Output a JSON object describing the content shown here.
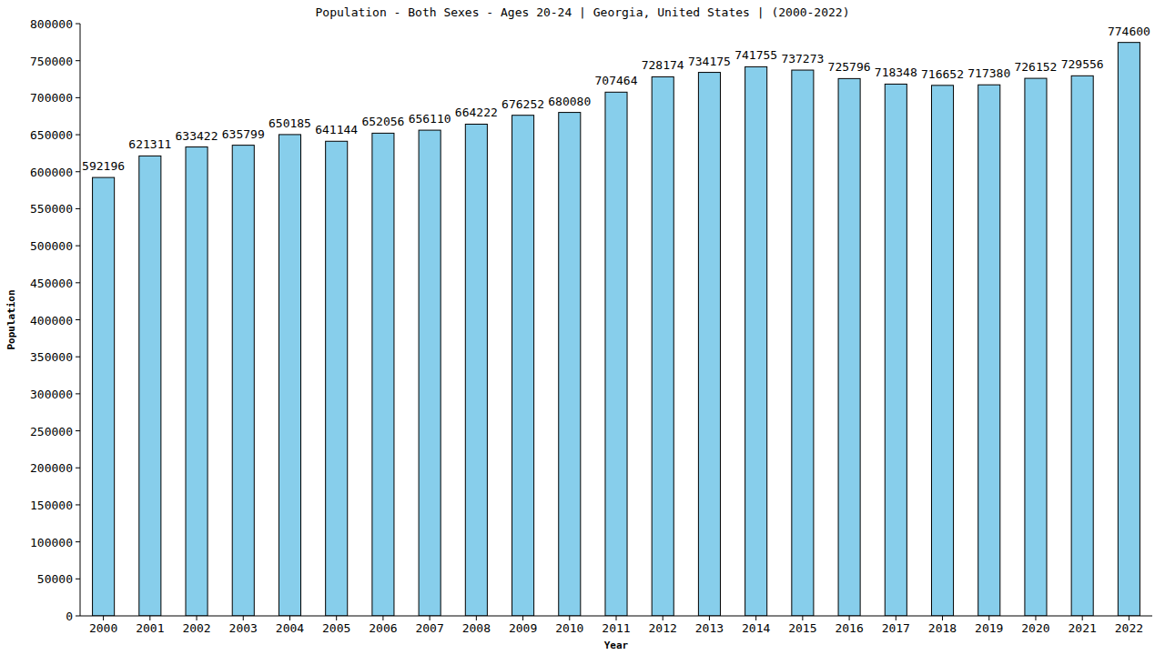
{
  "chart_data": {
    "type": "bar",
    "title": "Population - Both Sexes - Ages 20-24 | Georgia, United States |  (2000-2022)",
    "x_label": "Year",
    "y_label": "Population",
    "categories": [
      "2000",
      "2001",
      "2002",
      "2003",
      "2004",
      "2005",
      "2006",
      "2007",
      "2008",
      "2009",
      "2010",
      "2011",
      "2012",
      "2013",
      "2014",
      "2015",
      "2016",
      "2017",
      "2018",
      "2019",
      "2020",
      "2021",
      "2022"
    ],
    "values": [
      592196,
      621311,
      633422,
      635799,
      650185,
      641144,
      652056,
      656110,
      664222,
      676252,
      680080,
      707464,
      728174,
      734175,
      741755,
      737273,
      725796,
      718348,
      716652,
      717380,
      726152,
      729556,
      774600
    ],
    "color": "#87ceeb",
    "ylim": [
      0,
      800000
    ],
    "yticks": [
      0,
      50000,
      100000,
      150000,
      200000,
      250000,
      300000,
      350000,
      400000,
      450000,
      500000,
      550000,
      600000,
      650000,
      700000,
      750000,
      800000
    ],
    "grid": false,
    "data_labels": true
  }
}
